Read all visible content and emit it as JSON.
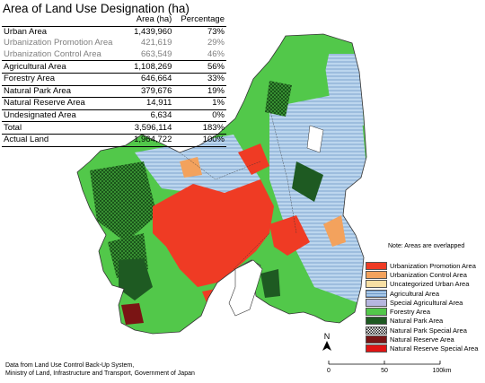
{
  "title": "Area of Land Use Designation (ha)",
  "table": {
    "headers": [
      "",
      "Area (ha)",
      "Percentage"
    ],
    "rows": [
      {
        "name": "Urban Area",
        "area": "1,439,960",
        "pct": "73%",
        "style": "main"
      },
      {
        "name": "Urbanization Promotion Area",
        "area": "421,619",
        "pct": "29%",
        "style": "sub"
      },
      {
        "name": "Urbanization Control Area",
        "area": "663,549",
        "pct": "46%",
        "style": "sub"
      },
      {
        "name": "Agricultural Area",
        "area": "1,108,269",
        "pct": "56%",
        "style": "main"
      },
      {
        "name": "Forestry Area",
        "area": "646,664",
        "pct": "33%",
        "style": "main"
      },
      {
        "name": "Natural Park Area",
        "area": "379,676",
        "pct": "19%",
        "style": "main"
      },
      {
        "name": "Natural Reserve Area",
        "area": "14,911",
        "pct": "1%",
        "style": "main"
      },
      {
        "name": "Undesignated Area",
        "area": "6,634",
        "pct": "0%",
        "style": "main"
      },
      {
        "name": "Total",
        "area": "3,596,114",
        "pct": "183%",
        "style": "main"
      },
      {
        "name": "Actual Land",
        "area": "1,964,722",
        "pct": "100%",
        "style": "main"
      }
    ]
  },
  "note": "Note: Areas are overlapped",
  "legend": [
    {
      "label": "Urbanization Promotion Area",
      "color": "#ef3b24"
    },
    {
      "label": "Urbanization Control Area",
      "color": "#f3a25d"
    },
    {
      "label": "Uncategorized Urban Area",
      "color": "#f7dfa4"
    },
    {
      "label": "Agricultural Area",
      "color": "#a9c9e8",
      "pattern": "lines"
    },
    {
      "label": "Special Agricultural Area",
      "color": "#b6b6df"
    },
    {
      "label": "Forestry Area",
      "color": "#52c84a"
    },
    {
      "label": "Natural Park Area",
      "color": "#1e5a22"
    },
    {
      "label": "Natural Park Special Area",
      "color": "#ffffff",
      "pattern": "check"
    },
    {
      "label": "Natural Reserve Area",
      "color": "#7a1414"
    },
    {
      "label": "Natural Reserve Special Area",
      "color": "#e01313"
    }
  ],
  "north_label": "N",
  "scale": {
    "ticks": [
      "0",
      "50",
      "100km"
    ]
  },
  "source": [
    "Data from Land Use Control Back-Up System,",
    "Ministry of Land, Infrastructure and Transport, Government of Japan"
  ]
}
